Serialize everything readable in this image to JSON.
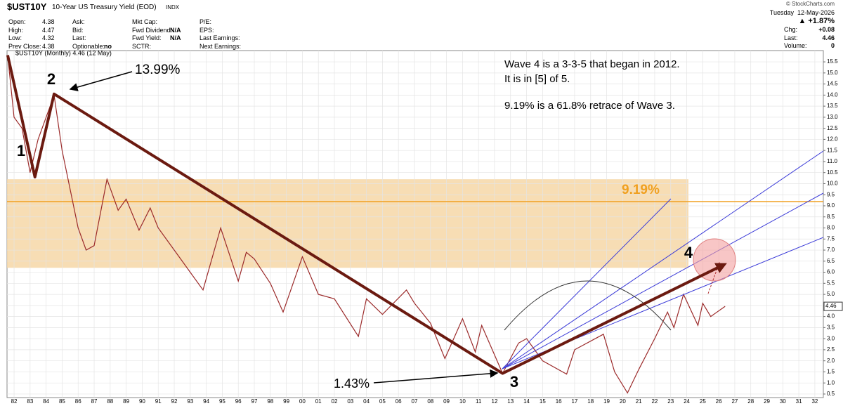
{
  "header": {
    "symbol": "$UST10Y",
    "name": "10-Year US Treasury Yield (EOD)",
    "exchange": "INDX",
    "copyright": "© StockCharts.com",
    "date": "Tuesday  12-May-2026",
    "change_pct": "▲ +1.87%",
    "columns": [
      [
        [
          "Open:",
          4.38
        ],
        [
          "High:",
          4.47
        ],
        [
          "Low:",
          4.32
        ],
        [
          "Prev Close:",
          4.38
        ]
      ],
      [
        [
          "Ask:"
        ],
        [
          "Bid:"
        ],
        [
          "Last:"
        ],
        [
          "Optionable:",
          "no"
        ]
      ],
      [
        [
          "Mkt Cap:"
        ],
        [
          "Fwd Dividend:",
          "N/A"
        ],
        [
          "Fwd Yield:",
          "N/A"
        ],
        [
          "SCTR:"
        ]
      ],
      [
        [
          "P/E:"
        ],
        [
          "EPS:"
        ],
        [
          "Last Earnings:"
        ],
        [
          "Next Earnings:"
        ]
      ]
    ],
    "right": [
      [
        "Chg:",
        "+0.08"
      ],
      [
        "Last:",
        4.46
      ],
      [
        "Volume:",
        0
      ]
    ]
  },
  "chart_data": {
    "type": "line",
    "grid": true,
    "series": [
      {
        "name": "$UST10Y (Monthly) 4.46 (12 May)",
        "color": "#9b2a2a",
        "values": [
          15.8,
          13.0,
          12.5,
          10.5,
          12.0,
          13.99,
          11.5,
          8.0,
          7.0,
          7.2,
          10.2,
          8.8,
          9.3,
          7.9,
          8.9,
          8.0,
          7.0,
          6.0,
          5.2,
          8.0,
          5.6,
          6.9,
          6.6,
          5.5,
          4.2,
          6.7,
          5.0,
          4.8,
          3.1,
          4.8,
          4.1,
          5.2,
          4.6,
          3.7,
          2.1,
          3.9,
          2.4,
          3.6,
          1.43,
          2.8,
          3.0,
          2.0,
          1.4,
          2.5,
          3.2,
          1.5,
          0.55,
          1.6,
          3.0,
          4.2,
          3.5,
          5.0,
          3.6,
          4.6,
          4.0,
          4.46
        ]
      }
    ],
    "x": [
      1981.6,
      1982,
      1982.5,
      1983,
      1983.5,
      1984.5,
      1985,
      1986,
      1986.5,
      1987,
      1987.8,
      1988.5,
      1989,
      1989.8,
      1990.5,
      1991,
      1992,
      1993,
      1993.8,
      1994.9,
      1996,
      1996.5,
      1997,
      1998,
      1998.8,
      2000,
      2001,
      2002,
      2003.5,
      2004,
      2005,
      2006.5,
      2007,
      2008,
      2008.9,
      2010,
      2010.8,
      2011.2,
      2012.5,
      2013.5,
      2014,
      2015,
      2016.5,
      2017,
      2018.8,
      2019.5,
      2020.3,
      2021,
      2022,
      2022.8,
      2023.2,
      2023.8,
      2024.7,
      2025,
      2025.5,
      2026.4
    ],
    "last_value": 4.46,
    "xlim": [
      1981.56,
      2032.53
    ],
    "ylim": [
      0.34,
      16.01
    ],
    "xticks": [
      {
        "value": 1982,
        "label": "82"
      },
      {
        "value": 1983,
        "label": "83"
      },
      {
        "value": 1984,
        "label": "84"
      },
      {
        "value": 1985,
        "label": "85"
      },
      {
        "value": 1986,
        "label": "86"
      },
      {
        "value": 1987,
        "label": "87"
      },
      {
        "value": 1988,
        "label": "88"
      },
      {
        "value": 1989,
        "label": "89"
      },
      {
        "value": 1990,
        "label": "90"
      },
      {
        "value": 1991,
        "label": "91"
      },
      {
        "value": 1992,
        "label": "92"
      },
      {
        "value": 1993,
        "label": "93"
      },
      {
        "value": 1994,
        "label": "94"
      },
      {
        "value": 1995,
        "label": "95"
      },
      {
        "value": 1996,
        "label": "96"
      },
      {
        "value": 1997,
        "label": "97"
      },
      {
        "value": 1998,
        "label": "98"
      },
      {
        "value": 1999,
        "label": "99"
      },
      {
        "value": 2000,
        "label": "00"
      },
      {
        "value": 2001,
        "label": "01"
      },
      {
        "value": 2002,
        "label": "02"
      },
      {
        "value": 2003,
        "label": "03"
      },
      {
        "value": 2004,
        "label": "04"
      },
      {
        "value": 2005,
        "label": "05"
      },
      {
        "value": 2006,
        "label": "06"
      },
      {
        "value": 2007,
        "label": "07"
      },
      {
        "value": 2008,
        "label": "08"
      },
      {
        "value": 2009,
        "label": "09"
      },
      {
        "value": 2010,
        "label": "10"
      },
      {
        "value": 2011,
        "label": "11"
      },
      {
        "value": 2012,
        "label": "12"
      },
      {
        "value": 2013,
        "label": "13"
      },
      {
        "value": 2014,
        "label": "14"
      },
      {
        "value": 2015,
        "label": "15"
      },
      {
        "value": 2016,
        "label": "16"
      },
      {
        "value": 2017,
        "label": "17"
      },
      {
        "value": 2018,
        "label": "18"
      },
      {
        "value": 2019,
        "label": "19"
      },
      {
        "value": 2020,
        "label": "20"
      },
      {
        "value": 2021,
        "label": "21"
      },
      {
        "value": 2022,
        "label": "22"
      },
      {
        "value": 2023,
        "label": "23"
      },
      {
        "value": 2024,
        "label": "24"
      },
      {
        "value": 2025,
        "label": "25"
      },
      {
        "value": 2026,
        "label": "26"
      },
      {
        "value": 2027,
        "label": "27"
      },
      {
        "value": 2028,
        "label": "28"
      },
      {
        "value": 2029,
        "label": "29"
      },
      {
        "value": 2030,
        "label": "30"
      },
      {
        "value": 2031,
        "label": "31"
      },
      {
        "value": 2032,
        "label": "32"
      }
    ],
    "yticks": [
      0.5,
      {
        "value": 1,
        "label": "1.0"
      },
      1.5,
      {
        "value": 2,
        "label": "2.0"
      },
      2.5,
      {
        "value": 3,
        "label": "3.0"
      },
      3.5,
      {
        "value": 4,
        "label": "4.0"
      },
      4.5,
      {
        "value": 5,
        "label": "5.0"
      },
      5.5,
      {
        "value": 6,
        "label": "6.0"
      },
      6.5,
      {
        "value": 7,
        "label": "7.0"
      },
      7.5,
      {
        "value": 8,
        "label": "8.0"
      },
      8.5,
      {
        "value": 9,
        "label": "9.0"
      },
      9.5,
      {
        "value": 10,
        "label": "10.0"
      },
      10.5,
      {
        "value": 11,
        "label": "11.0"
      },
      11.5,
      {
        "value": 12,
        "label": "12.0"
      },
      12.5,
      {
        "value": 13,
        "label": "13.0"
      },
      13.5,
      {
        "value": 14,
        "label": "14.0"
      },
      14.5,
      {
        "value": 15,
        "label": "15.0"
      },
      15.5
    ],
    "zone": [
      6.2,
      10.2
    ],
    "level": 9.19,
    "level_label": "9.19%",
    "wave": {
      "x": [
        1981.6,
        1983.3,
        1984.5,
        2012.5,
        2026.2
      ],
      "y": [
        15.8,
        10.3,
        14.05,
        1.43,
        6.3
      ]
    },
    "wave_labels": [
      "1",
      "2",
      "3",
      "4"
    ],
    "high_label": "13.99%",
    "low_label": "1.43%",
    "notes": [
      "Wave 4 is a 3-3-5 that began in 2012.",
      "It is in [5] of 5.",
      "9.19% is a 61.8% retrace of Wave 3."
    ]
  }
}
